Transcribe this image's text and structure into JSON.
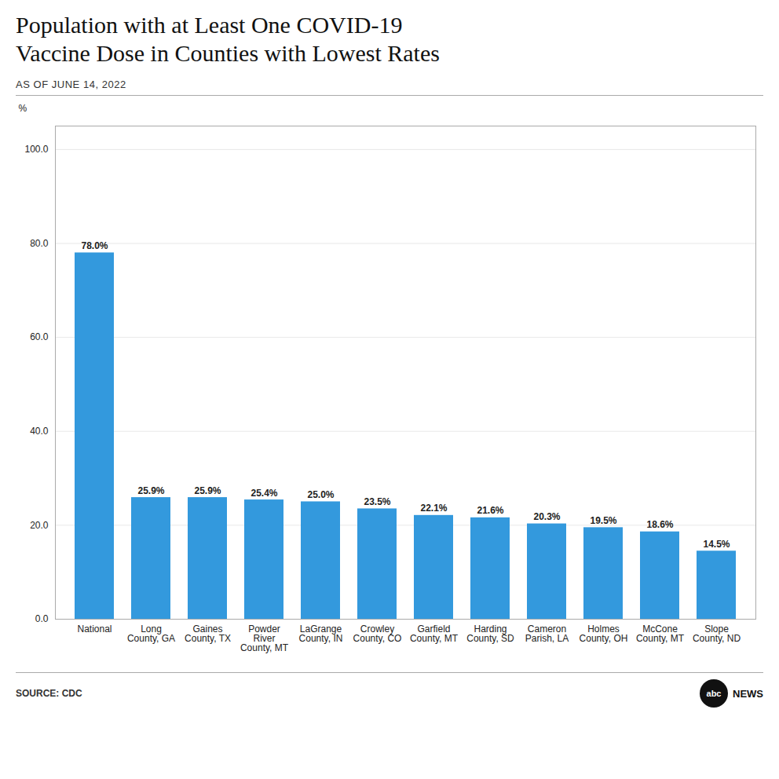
{
  "chart_data": {
    "type": "bar",
    "title": "Population with at Least One COVID-19\nVaccine Dose in Counties with Lowest Rates",
    "subtitle": "AS OF JUNE 14, 2022",
    "ylabel": "%",
    "source": "SOURCE: CDC",
    "annotations": [
      "abc",
      "NEWS"
    ],
    "categories": [
      "National",
      "Long\nCounty, GA",
      "Gaines\nCounty, TX",
      "Powder\nRiver\nCounty, MT",
      "LaGrange\nCounty, IN",
      "Crowley\nCounty, CO",
      "Garfield\nCounty, MT",
      "Harding\nCounty, SD",
      "Cameron\nParish, LA",
      "Holmes\nCounty, OH",
      "McCone\nCounty, MT",
      "Slope\nCounty, ND"
    ],
    "values": [
      78.0,
      25.9,
      25.9,
      25.4,
      25.0,
      23.5,
      22.1,
      21.6,
      20.3,
      19.5,
      18.6,
      14.5
    ],
    "value_labels": [
      "78.0%",
      "25.9%",
      "25.9%",
      "25.4%",
      "25.0%",
      "23.5%",
      "22.1%",
      "21.6%",
      "20.3%",
      "19.5%",
      "18.6%",
      "14.5%"
    ],
    "data_labels": true,
    "color": "#3399dd",
    "ylim": [
      0,
      105
    ],
    "yticks": [
      {
        "value": 0,
        "label": "0.0"
      },
      {
        "value": 20,
        "label": "20.0"
      },
      {
        "value": 40,
        "label": "40.0"
      },
      {
        "value": 60,
        "label": "60.0"
      },
      {
        "value": 80,
        "label": "80.0"
      },
      {
        "value": 100,
        "label": "100.0"
      }
    ],
    "grid": true
  }
}
